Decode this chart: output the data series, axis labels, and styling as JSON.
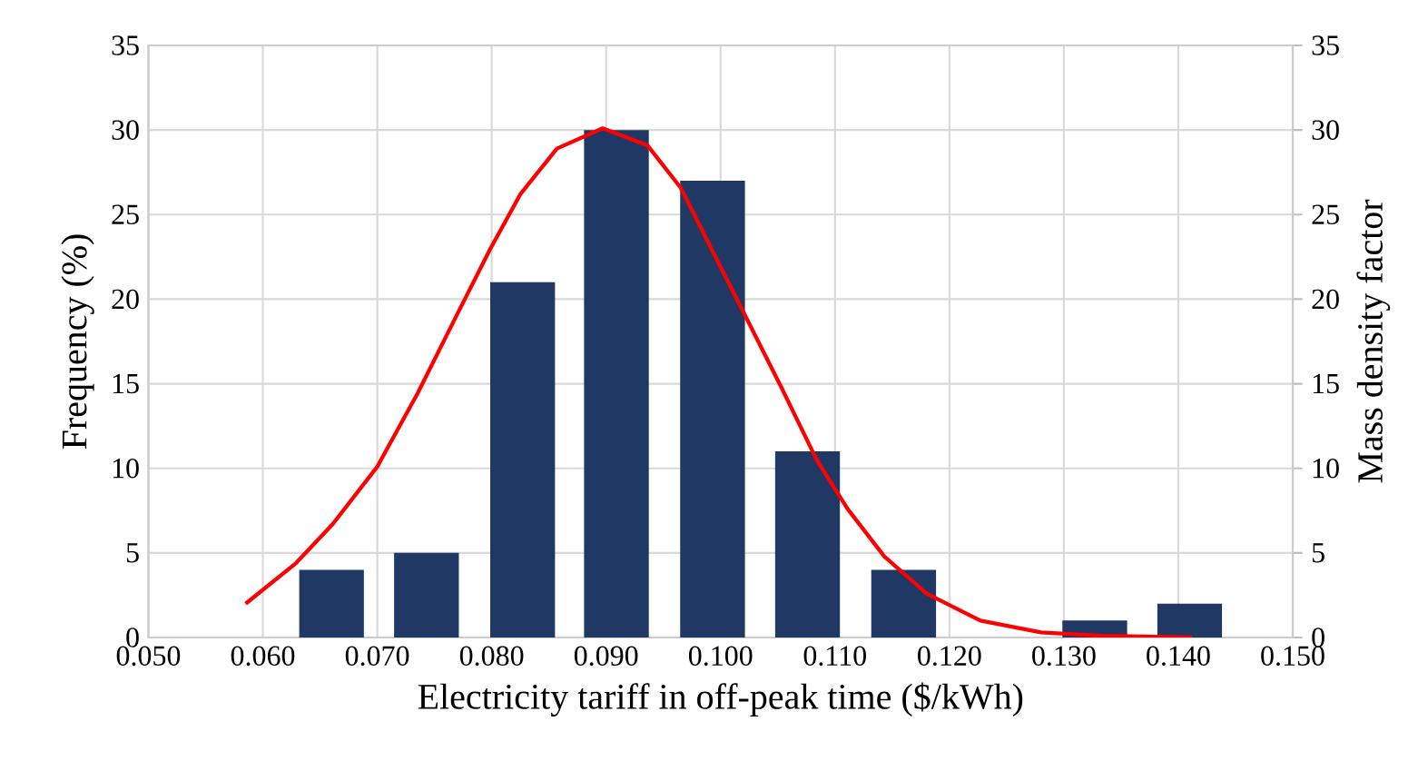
{
  "chart_data": {
    "type": "bar",
    "xlabel": "Electricity tariff in off-peak time ($/kWh)",
    "ylabel": "Frequency (%)",
    "y2label": "Mass density factor",
    "xlim": [
      0.05,
      0.15
    ],
    "xticks": [
      {
        "value": 0.05,
        "label": "0.050"
      },
      {
        "value": 0.06,
        "label": "0.060"
      },
      {
        "value": 0.07,
        "label": "0.070"
      },
      {
        "value": 0.08,
        "label": "0.080"
      },
      {
        "value": 0.09,
        "label": "0.090"
      },
      {
        "value": 0.1,
        "label": "0.100"
      },
      {
        "value": 0.11,
        "label": "0.110"
      },
      {
        "value": 0.12,
        "label": "0.120"
      },
      {
        "value": 0.13,
        "label": "0.130"
      },
      {
        "value": 0.14,
        "label": "0.140"
      },
      {
        "value": 0.15,
        "label": "0.150"
      }
    ],
    "ylim": [
      0,
      35
    ],
    "yticks": [
      0,
      5,
      10,
      15,
      20,
      25,
      30,
      35
    ],
    "y2lim": [
      0,
      35
    ],
    "y2ticks": [
      0,
      5,
      10,
      15,
      20,
      25,
      30,
      35
    ],
    "grid": true,
    "series": [
      {
        "color": "#203864",
        "x": [
          0.066,
          0.0743,
          0.0827,
          0.0909,
          0.0993,
          0.1076,
          0.116,
          0.1327,
          0.141
        ],
        "values": [
          4,
          5,
          21,
          30,
          27,
          11,
          4,
          1,
          2
        ]
      },
      {
        "type": "line",
        "axis": "y2",
        "color": "#ff0000",
        "x": [
          0.0585,
          0.0629,
          0.0661,
          0.07,
          0.0735,
          0.0772,
          0.0799,
          0.0825,
          0.0857,
          0.0897,
          0.0936,
          0.0965,
          0.0994,
          0.1021,
          0.1053,
          0.1084,
          0.1111,
          0.1143,
          0.118,
          0.1227,
          0.128,
          0.1333,
          0.1412
        ],
        "values": [
          2.0,
          4.4,
          6.7,
          10.1,
          14.4,
          19.4,
          23.0,
          26.2,
          28.9,
          30.1,
          29.1,
          26.6,
          22.7,
          19.1,
          14.8,
          10.5,
          7.6,
          4.8,
          2.6,
          1.0,
          0.3,
          0.1,
          0.0
        ]
      }
    ]
  }
}
